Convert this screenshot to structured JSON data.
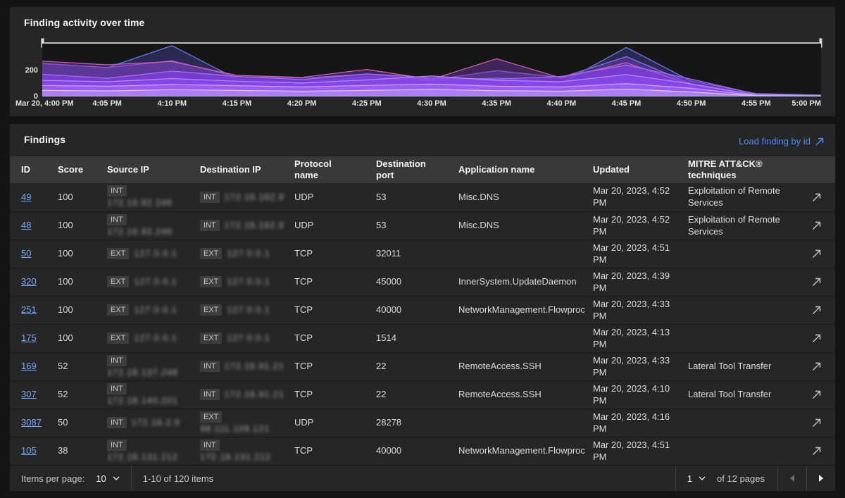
{
  "colors": {
    "page_bg": "#141414",
    "card_bg": "#262626",
    "table_header_bg": "#393939",
    "link_blue": "#4a8df8",
    "id_link_blue": "#78a9ff",
    "text_primary": "#f4f4f4",
    "text_secondary": "#c6c6c6"
  },
  "chart_data": {
    "type": "area",
    "title": "Finding activity over time",
    "xlabel": "",
    "ylabel": "",
    "ylim": [
      0,
      400
    ],
    "y_ticks": [
      200,
      0
    ],
    "grid": false,
    "legend": "none",
    "has_range_slider": true,
    "x": [
      "Mar 20, 4:00 PM",
      "4:05 PM",
      "4:10 PM",
      "4:15 PM",
      "4:20 PM",
      "4:25 PM",
      "4:30 PM",
      "4:35 PM",
      "4:40 PM",
      "4:45 PM",
      "4:50 PM",
      "4:55 PM",
      "5:00 PM"
    ],
    "series": [
      {
        "name": "layer-blue",
        "stroke": "#6f7bf5",
        "fill": "rgba(90,85,220,0.30)",
        "values": [
          252,
          218,
          385,
          132,
          108,
          148,
          116,
          142,
          102,
          372,
          116,
          22,
          12
        ]
      },
      {
        "name": "layer-violet",
        "stroke": "#8f6ef2",
        "fill": "rgba(104,70,190,0.45)",
        "values": [
          250,
          220,
          270,
          150,
          140,
          170,
          125,
          195,
          145,
          302,
          95,
          12,
          8
        ]
      },
      {
        "name": "layer-pink",
        "stroke": "#d65db8",
        "fill": "rgba(128,60,185,0.40)",
        "values": [
          268,
          240,
          265,
          160,
          145,
          205,
          130,
          286,
          140,
          256,
          88,
          10,
          6
        ]
      },
      {
        "name": "layer-purple-1",
        "stroke": "#a56eff",
        "fill": "rgba(138,63,252,0.55)",
        "values": [
          168,
          138,
          192,
          152,
          128,
          172,
          142,
          132,
          152,
          238,
          132,
          18,
          8
        ]
      },
      {
        "name": "layer-purple-2",
        "stroke": "#b98aff",
        "fill": "rgba(150,80,255,0.50)",
        "values": [
          122,
          112,
          136,
          116,
          102,
          126,
          156,
          122,
          112,
          166,
          96,
          12,
          6
        ]
      },
      {
        "name": "layer-purple-3",
        "stroke": "#cbaaff",
        "fill": "rgba(170,110,255,0.55)",
        "values": [
          84,
          78,
          90,
          82,
          72,
          84,
          94,
          78,
          72,
          98,
          62,
          8,
          4
        ]
      },
      {
        "name": "layer-purple-4",
        "stroke": "#e0ccff",
        "fill": "rgba(195,150,255,0.55)",
        "values": [
          46,
          42,
          52,
          46,
          40,
          46,
          54,
          44,
          40,
          56,
          34,
          5,
          3
        ]
      }
    ]
  },
  "findings": {
    "title": "Findings",
    "load_link": "Load finding by id",
    "columns": [
      "ID",
      "Score",
      "Source IP",
      "Destination IP",
      "Protocol name",
      "Destination port",
      "Application name",
      "Updated",
      "MITRE ATT&CK® techniques"
    ],
    "rows": [
      {
        "id": "49",
        "score": "100",
        "src_zone": "INT",
        "src_ip_redacted": "172.16.92.246",
        "dst_zone": "INT",
        "dst_ip_redacted": "172.16.162.9",
        "protocol": "UDP",
        "port": "53",
        "app": "Misc.DNS",
        "updated": "Mar 20, 2023, 4:52 PM",
        "mitre": "Exploitation of Remote Services"
      },
      {
        "id": "48",
        "score": "100",
        "src_zone": "INT",
        "src_ip_redacted": "172.16.92.246",
        "dst_zone": "INT",
        "dst_ip_redacted": "172.16.162.9",
        "protocol": "UDP",
        "port": "53",
        "app": "Misc.DNS",
        "updated": "Mar 20, 2023, 4:52 PM",
        "mitre": "Exploitation of Remote Services"
      },
      {
        "id": "50",
        "score": "100",
        "src_zone": "EXT",
        "src_ip_redacted": "127.0.0.1",
        "dst_zone": "EXT",
        "dst_ip_redacted": "127.0.0.1",
        "protocol": "TCP",
        "port": "32011",
        "app": "",
        "updated": "Mar 20, 2023, 4:51 PM",
        "mitre": ""
      },
      {
        "id": "320",
        "score": "100",
        "src_zone": "EXT",
        "src_ip_redacted": "127.0.0.1",
        "dst_zone": "EXT",
        "dst_ip_redacted": "127.0.0.1",
        "protocol": "TCP",
        "port": "45000",
        "app": "InnerSystem.UpdateDaemon",
        "updated": "Mar 20, 2023, 4:39 PM",
        "mitre": ""
      },
      {
        "id": "251",
        "score": "100",
        "src_zone": "EXT",
        "src_ip_redacted": "127.0.0.1",
        "dst_zone": "EXT",
        "dst_ip_redacted": "127.0.0.1",
        "protocol": "TCP",
        "port": "40000",
        "app": "NetworkManagement.Flowproc",
        "updated": "Mar 20, 2023, 4:33 PM",
        "mitre": ""
      },
      {
        "id": "175",
        "score": "100",
        "src_zone": "EXT",
        "src_ip_redacted": "127.0.0.1",
        "dst_zone": "EXT",
        "dst_ip_redacted": "127.0.0.1",
        "protocol": "TCP",
        "port": "1514",
        "app": "",
        "updated": "Mar 20, 2023, 4:13 PM",
        "mitre": ""
      },
      {
        "id": "169",
        "score": "52",
        "src_zone": "INT",
        "src_ip_redacted": "172.18.137.248",
        "dst_zone": "INT",
        "dst_ip_redacted": "172.16.91.21",
        "protocol": "TCP",
        "port": "22",
        "app": "RemoteAccess.SSH",
        "updated": "Mar 20, 2023, 4:33 PM",
        "mitre": "Lateral Tool Transfer"
      },
      {
        "id": "307",
        "score": "52",
        "src_zone": "INT",
        "src_ip_redacted": "172.18.140.201",
        "dst_zone": "INT",
        "dst_ip_redacted": "172.16.91.21",
        "protocol": "TCP",
        "port": "22",
        "app": "RemoteAccess.SSH",
        "updated": "Mar 20, 2023, 4:10 PM",
        "mitre": "Lateral Tool Transfer"
      },
      {
        "id": "3087",
        "score": "50",
        "src_zone": "INT",
        "src_ip_redacted": "172.16.2.9",
        "dst_zone": "EXT",
        "dst_ip_redacted": "98.111.109.121",
        "protocol": "UDP",
        "port": "28278",
        "app": "",
        "updated": "Mar 20, 2023, 4:16 PM",
        "mitre": ""
      },
      {
        "id": "105",
        "score": "38",
        "src_zone": "INT",
        "src_ip_redacted": "172.18.131.212",
        "dst_zone": "INT",
        "dst_ip_redacted": "172.18.131.212",
        "protocol": "TCP",
        "port": "40000",
        "app": "NetworkManagement.Flowproc",
        "updated": "Mar 20, 2023, 4:51 PM",
        "mitre": ""
      }
    ]
  },
  "pagination": {
    "items_per_page_label": "Items per page:",
    "page_size": "10",
    "range_text": "1-10 of 120 items",
    "current_page": "1",
    "pages_text": "of 12 pages"
  }
}
